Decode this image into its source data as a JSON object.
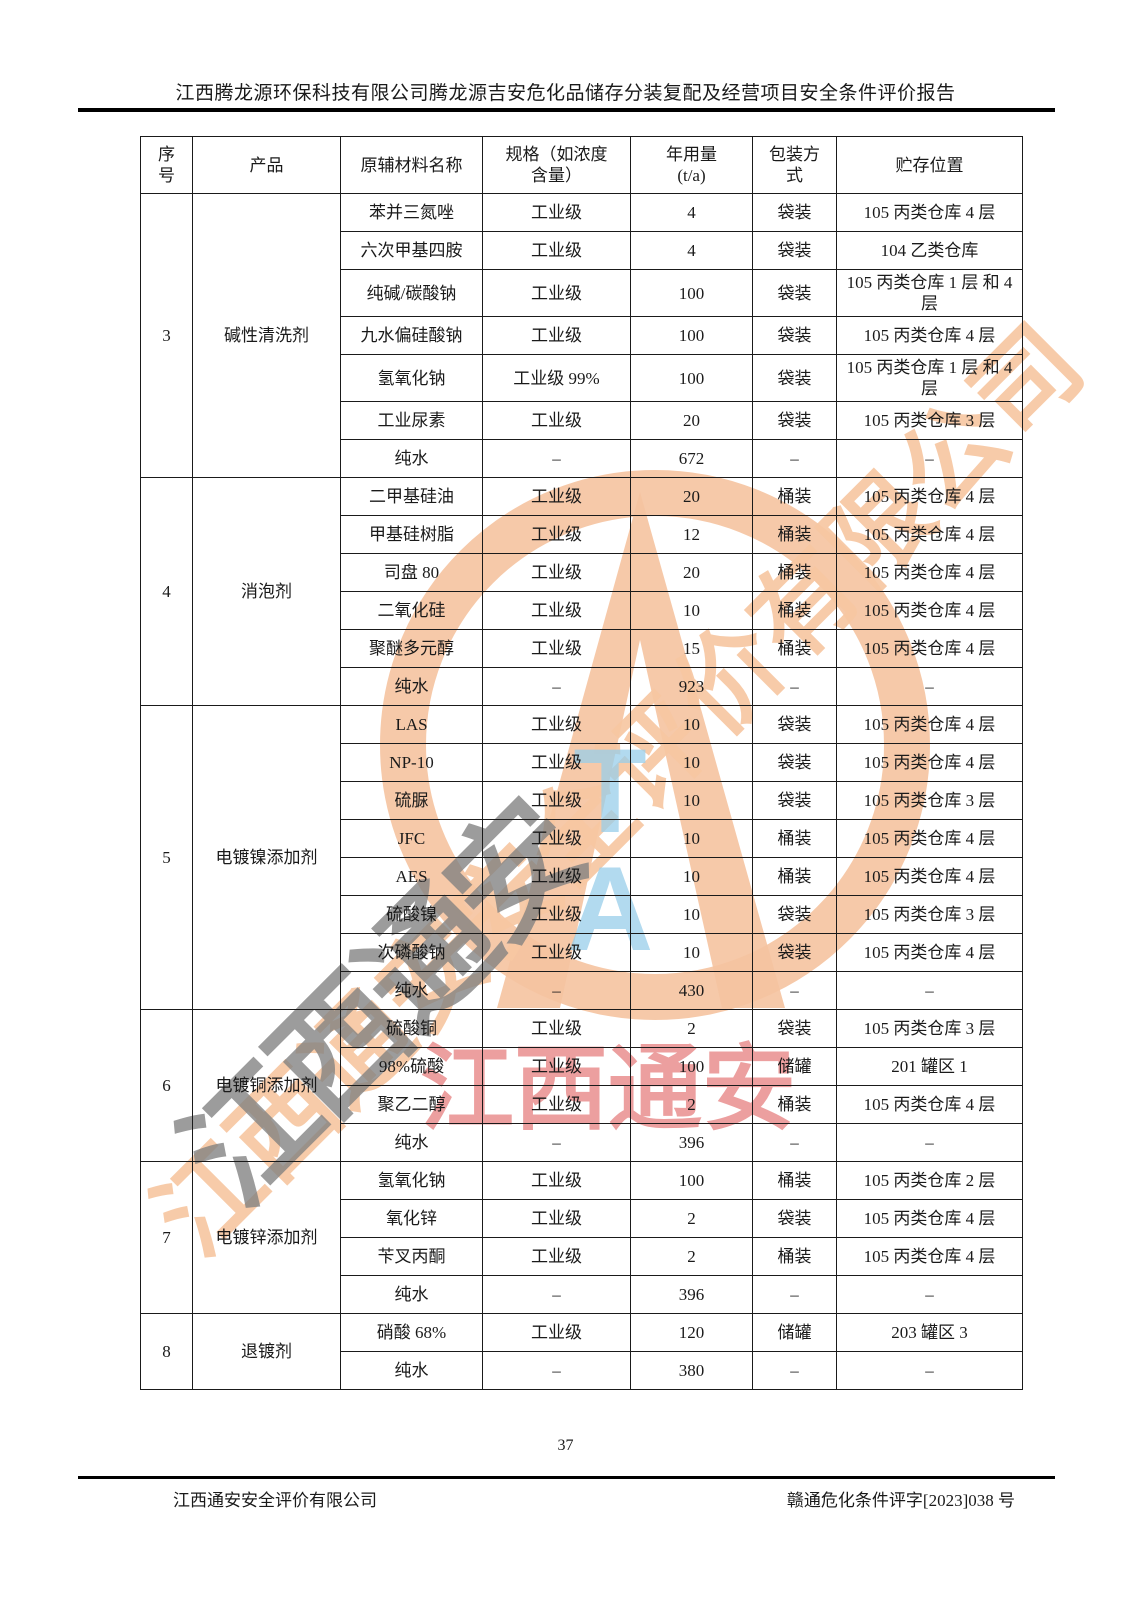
{
  "header": {
    "title": "江西腾龙源环保科技有限公司腾龙源吉安危化品储存分装复配及经营项目安全条件评价报告"
  },
  "table": {
    "columns": [
      "序\n号",
      "产品",
      "原辅材料名称",
      "规格（如浓度\n含量）",
      "年用量\n(t/a)",
      "包装方\n式",
      "贮存位置"
    ],
    "sections": [
      {
        "no": "3",
        "product": "碱性清洗剂",
        "rows": [
          [
            "苯并三氮唑",
            "工业级",
            "4",
            "袋装",
            "105 丙类仓库 4 层"
          ],
          [
            "六次甲基四胺",
            "工业级",
            "4",
            "袋装",
            "104 乙类仓库"
          ],
          [
            "纯碱/碳酸钠",
            "工业级",
            "100",
            "袋装",
            "105 丙类仓库 1 层 和 4 层"
          ],
          [
            "九水偏硅酸钠",
            "工业级",
            "100",
            "袋装",
            "105 丙类仓库 4 层"
          ],
          [
            "氢氧化钠",
            "工业级 99%",
            "100",
            "袋装",
            "105 丙类仓库 1 层 和 4 层"
          ],
          [
            "工业尿素",
            "工业级",
            "20",
            "袋装",
            "105 丙类仓库 3 层"
          ],
          [
            "纯水",
            "–",
            "672",
            "–",
            "–"
          ]
        ]
      },
      {
        "no": "4",
        "product": "消泡剂",
        "rows": [
          [
            "二甲基硅油",
            "工业级",
            "20",
            "桶装",
            "105 丙类仓库 4 层"
          ],
          [
            "甲基硅树脂",
            "工业级",
            "12",
            "桶装",
            "105 丙类仓库 4 层"
          ],
          [
            "司盘 80",
            "工业级",
            "20",
            "桶装",
            "105 丙类仓库 4 层"
          ],
          [
            "二氧化硅",
            "工业级",
            "10",
            "桶装",
            "105 丙类仓库 4 层"
          ],
          [
            "聚醚多元醇",
            "工业级",
            "15",
            "桶装",
            "105 丙类仓库 4 层"
          ],
          [
            "纯水",
            "–",
            "923",
            "–",
            "–"
          ]
        ]
      },
      {
        "no": "5",
        "product": "电镀镍添加剂",
        "rows": [
          [
            "LAS",
            "工业级",
            "10",
            "袋装",
            "105 丙类仓库 4 层"
          ],
          [
            "NP-10",
            "工业级",
            "10",
            "袋装",
            "105 丙类仓库 4 层"
          ],
          [
            "硫脲",
            "工业级",
            "10",
            "袋装",
            "105 丙类仓库 3 层"
          ],
          [
            "JFC",
            "工业级",
            "10",
            "桶装",
            "105 丙类仓库 4 层"
          ],
          [
            "AES",
            "工业级",
            "10",
            "桶装",
            "105 丙类仓库 4 层"
          ],
          [
            "硫酸镍",
            "工业级",
            "10",
            "袋装",
            "105 丙类仓库 3 层"
          ],
          [
            "次磷酸钠",
            "工业级",
            "10",
            "袋装",
            "105 丙类仓库 4 层"
          ],
          [
            "纯水",
            "–",
            "430",
            "–",
            "–"
          ]
        ]
      },
      {
        "no": "6",
        "product": "电镀铜添加剂",
        "rows": [
          [
            "硫酸铜",
            "工业级",
            "2",
            "袋装",
            "105 丙类仓库 3 层"
          ],
          [
            "98%硫酸",
            "工业级",
            "100",
            "储罐",
            "201 罐区 1"
          ],
          [
            "聚乙二醇",
            "工业级",
            "2",
            "桶装",
            "105 丙类仓库 4 层"
          ],
          [
            "纯水",
            "–",
            "396",
            "–",
            "–"
          ]
        ]
      },
      {
        "no": "7",
        "product": "电镀锌添加剂",
        "rows": [
          [
            "氢氧化钠",
            "工业级",
            "100",
            "桶装",
            "105 丙类仓库 2 层"
          ],
          [
            "氧化锌",
            "工业级",
            "2",
            "袋装",
            "105 丙类仓库 4 层"
          ],
          [
            "苄叉丙酮",
            "工业级",
            "2",
            "桶装",
            "105 丙类仓库 4 层"
          ],
          [
            "纯水",
            "–",
            "396",
            "–",
            "–"
          ]
        ]
      },
      {
        "no": "8",
        "product": "退镀剂",
        "rows": [
          [
            "硝酸 68%",
            "工业级",
            "120",
            "储罐",
            "203 罐区 3"
          ],
          [
            "纯水",
            "–",
            "380",
            "–",
            "–"
          ]
        ]
      }
    ]
  },
  "footer": {
    "page_number": "37",
    "left": "江西通安安全评价有限公司",
    "right": "赣通危化条件评字[2023]038 号"
  },
  "watermark": {
    "company_name_diagonal": "江西通安安全评价有限公司",
    "gray_diagonal_text": "江西通安",
    "red_stamp_text": "江西通安",
    "blue_letter_top": "T",
    "blue_letter_bottom": "A",
    "logo_color": "#f5c3a0",
    "red_color": "#dd5050",
    "gray_color": "#808080",
    "blue_color": "#98cee9"
  }
}
